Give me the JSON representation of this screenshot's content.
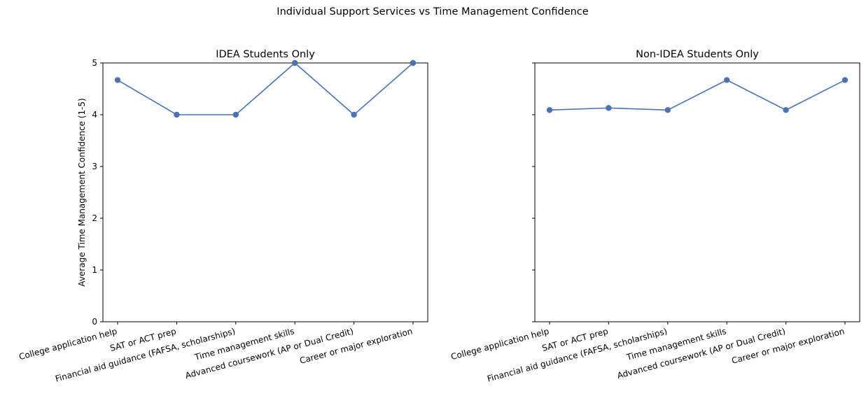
{
  "figure": {
    "title": "Individual Support Services vs Time Management Confidence"
  },
  "style": {
    "line_color": "#4c72b0",
    "axis_color": "#000000",
    "background": "#ffffff"
  },
  "chart_data": [
    {
      "type": "line",
      "title": "IDEA Students Only",
      "xlabel": "",
      "ylabel": "Average Time Management Confidence (1-5)",
      "categories": [
        "College application help",
        "SAT or ACT prep",
        "Financial aid guidance (FAFSA, scholarships)",
        "Time management skills",
        "Advanced coursework (AP or Dual Credit)",
        "Career or major exploration"
      ],
      "values": [
        4.67,
        4.0,
        4.0,
        5.0,
        4.0,
        5.0
      ],
      "ylim": [
        0,
        5
      ],
      "yticks": [
        0,
        1,
        2,
        3,
        4,
        5
      ],
      "grid": false,
      "markers": true
    },
    {
      "type": "line",
      "title": "Non-IDEA Students Only",
      "xlabel": "",
      "ylabel": "",
      "categories": [
        "College application help",
        "SAT or ACT prep",
        "Financial aid guidance (FAFSA, scholarships)",
        "Time management skills",
        "Advanced coursework (AP or Dual Credit)",
        "Career or major exploration"
      ],
      "values": [
        4.09,
        4.13,
        4.09,
        4.67,
        4.09,
        4.67
      ],
      "ylim": [
        0,
        5
      ],
      "yticks": [
        0,
        1,
        2,
        3,
        4,
        5
      ],
      "grid": false,
      "markers": true
    }
  ]
}
